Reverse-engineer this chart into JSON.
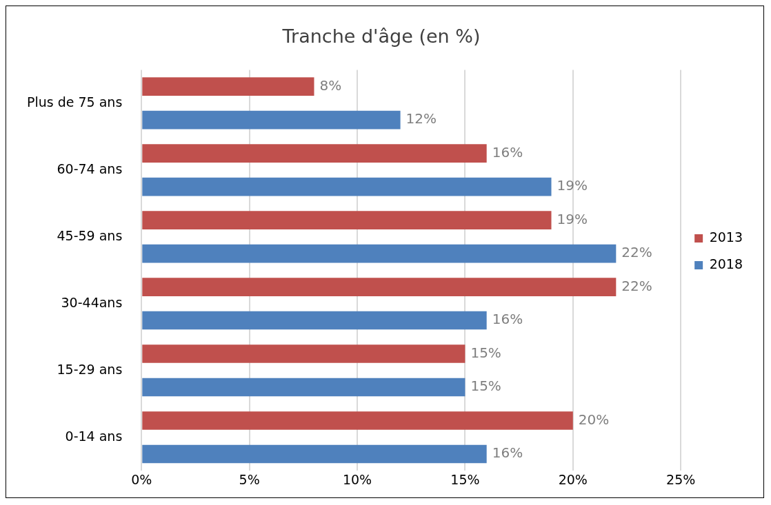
{
  "chart_data": {
    "type": "bar",
    "orientation": "horizontal",
    "title": "Tranche d'âge (en %)",
    "categories": [
      "Plus de 75 ans",
      "60-74 ans",
      "45-59 ans",
      "30-44ans",
      "15-29 ans",
      "0-14 ans"
    ],
    "series": [
      {
        "name": "2013",
        "color": "#c0504d",
        "values": [
          8,
          16,
          19,
          22,
          15,
          20
        ],
        "value_labels": [
          "8%",
          "16%",
          "19%",
          "22%",
          "15%",
          "20%"
        ]
      },
      {
        "name": "2018",
        "color": "#4f81bd",
        "values": [
          12,
          19,
          22,
          16,
          15,
          16
        ],
        "value_labels": [
          "12%",
          "19%",
          "22%",
          "16%",
          "15%",
          "16%"
        ]
      }
    ],
    "xlim": [
      0,
      25
    ],
    "xticks": [
      {
        "value": 0,
        "label": "0%"
      },
      {
        "value": 5,
        "label": "5%"
      },
      {
        "value": 10,
        "label": "10%"
      },
      {
        "value": 15,
        "label": "15%"
      },
      {
        "value": 20,
        "label": "20%"
      },
      {
        "value": 25,
        "label": "25%"
      }
    ],
    "grid": "x",
    "legend": "right"
  }
}
